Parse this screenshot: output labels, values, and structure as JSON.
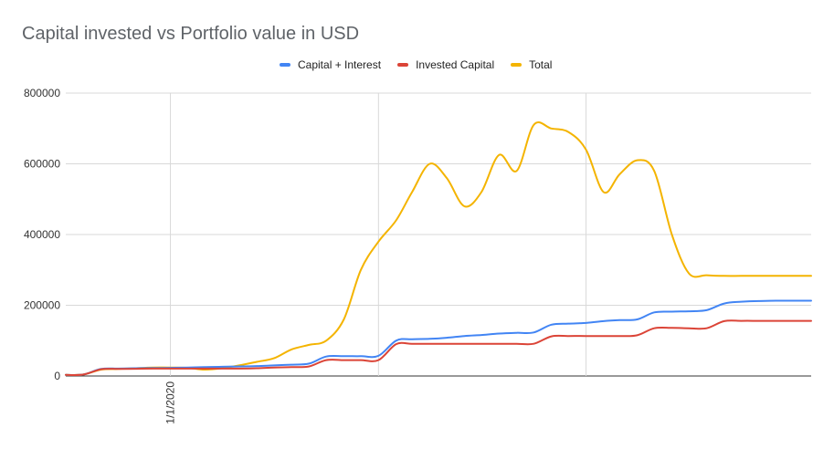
{
  "chart_data": {
    "type": "line",
    "title": "Capital invested vs Portfolio value in USD",
    "xlabel": "",
    "ylabel": "",
    "ylim": [
      0,
      800000
    ],
    "yticks": [
      0,
      200000,
      400000,
      600000,
      800000
    ],
    "xtick_labels": [
      "1/1/2020"
    ],
    "legend_position": "top",
    "grid": true,
    "x": [
      "2019-07-01",
      "2019-08-01",
      "2019-09-01",
      "2019-10-01",
      "2019-11-01",
      "2019-12-01",
      "2020-01-01",
      "2020-02-01",
      "2020-03-01",
      "2020-04-01",
      "2020-05-01",
      "2020-06-01",
      "2020-07-01",
      "2020-08-01",
      "2020-09-01",
      "2020-10-01",
      "2020-11-01",
      "2020-12-01",
      "2021-01-01",
      "2021-02-01",
      "2021-03-01",
      "2021-04-01",
      "2021-05-01",
      "2021-06-01",
      "2021-07-01",
      "2021-08-01",
      "2021-09-01",
      "2021-10-01",
      "2021-11-01",
      "2021-12-01",
      "2022-01-01",
      "2022-02-01",
      "2022-03-01",
      "2022-04-01",
      "2022-05-01",
      "2022-06-01",
      "2022-07-01",
      "2022-08-01",
      "2022-09-01",
      "2022-10-01",
      "2022-11-01",
      "2022-12-01",
      "2023-01-01",
      "2023-02-01"
    ],
    "series": [
      {
        "name": "Capital + Interest",
        "color": "#4285f4",
        "values": [
          3000,
          4000,
          20000,
          21000,
          22000,
          22500,
          23000,
          24000,
          25000,
          26000,
          27000,
          28000,
          30000,
          32000,
          35000,
          55000,
          56000,
          56000,
          57000,
          100000,
          104000,
          105000,
          108000,
          113000,
          116000,
          120000,
          122000,
          123000,
          145000,
          148000,
          150000,
          155000,
          158000,
          160000,
          180000,
          182000,
          183000,
          186000,
          205000,
          210000,
          212000,
          213000,
          213000,
          213000
        ]
      },
      {
        "name": "Invested Capital",
        "color": "#db4437",
        "values": [
          3000,
          4000,
          19000,
          20000,
          20500,
          21000,
          21000,
          21000,
          21000,
          21000,
          21000,
          22000,
          24000,
          25000,
          27000,
          45000,
          45000,
          45000,
          45000,
          90000,
          91000,
          91000,
          91000,
          91000,
          91000,
          91000,
          91000,
          91000,
          112000,
          113000,
          113000,
          113000,
          113000,
          115000,
          135000,
          136000,
          135000,
          135000,
          155000,
          156000,
          156000,
          156000,
          156000,
          156000
        ]
      },
      {
        "name": "Total",
        "color": "#f4b400",
        "values": [
          3000,
          4000,
          18000,
          20000,
          22000,
          24000,
          24000,
          23000,
          18000,
          22000,
          30000,
          40000,
          50000,
          75000,
          88000,
          100000,
          160000,
          300000,
          380000,
          440000,
          520000,
          600000,
          560000,
          480000,
          520000,
          625000,
          580000,
          710000,
          700000,
          690000,
          640000,
          520000,
          570000,
          610000,
          580000,
          400000,
          290000,
          285000,
          283000,
          283000,
          283000,
          283000,
          283000,
          283000
        ]
      }
    ]
  }
}
